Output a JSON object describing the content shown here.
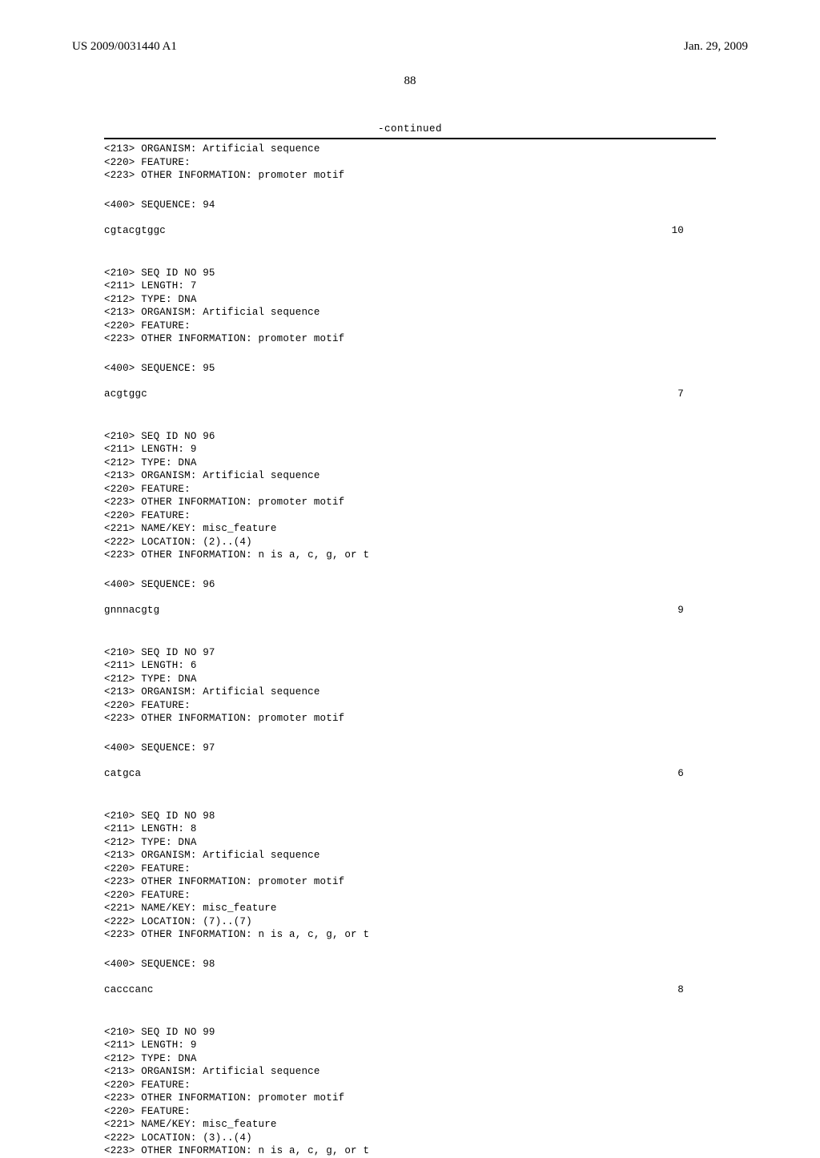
{
  "header": {
    "left": "US 2009/0031440 A1",
    "right": "Jan. 29, 2009"
  },
  "page_number": "88",
  "continued_label": "-continued",
  "entries": [
    {
      "meta": [
        "<213> ORGANISM: Artificial sequence",
        "<220> FEATURE:",
        "<223> OTHER INFORMATION: promoter motif"
      ],
      "seq_header": "<400> SEQUENCE: 94",
      "sequence": "cgtacgtggc",
      "length": "10"
    },
    {
      "meta": [
        "<210> SEQ ID NO 95",
        "<211> LENGTH: 7",
        "<212> TYPE: DNA",
        "<213> ORGANISM: Artificial sequence",
        "<220> FEATURE:",
        "<223> OTHER INFORMATION: promoter motif"
      ],
      "seq_header": "<400> SEQUENCE: 95",
      "sequence": "acgtggc",
      "length": "7"
    },
    {
      "meta": [
        "<210> SEQ ID NO 96",
        "<211> LENGTH: 9",
        "<212> TYPE: DNA",
        "<213> ORGANISM: Artificial sequence",
        "<220> FEATURE:",
        "<223> OTHER INFORMATION: promoter motif",
        "<220> FEATURE:",
        "<221> NAME/KEY: misc_feature",
        "<222> LOCATION: (2)..(4)",
        "<223> OTHER INFORMATION: n is a, c, g, or t"
      ],
      "seq_header": "<400> SEQUENCE: 96",
      "sequence": "gnnnacgtg",
      "length": "9"
    },
    {
      "meta": [
        "<210> SEQ ID NO 97",
        "<211> LENGTH: 6",
        "<212> TYPE: DNA",
        "<213> ORGANISM: Artificial sequence",
        "<220> FEATURE:",
        "<223> OTHER INFORMATION: promoter motif"
      ],
      "seq_header": "<400> SEQUENCE: 97",
      "sequence": "catgca",
      "length": "6"
    },
    {
      "meta": [
        "<210> SEQ ID NO 98",
        "<211> LENGTH: 8",
        "<212> TYPE: DNA",
        "<213> ORGANISM: Artificial sequence",
        "<220> FEATURE:",
        "<223> OTHER INFORMATION: promoter motif",
        "<220> FEATURE:",
        "<221> NAME/KEY: misc_feature",
        "<222> LOCATION: (7)..(7)",
        "<223> OTHER INFORMATION: n is a, c, g, or t"
      ],
      "seq_header": "<400> SEQUENCE: 98",
      "sequence": "cacccanc",
      "length": "8"
    },
    {
      "meta": [
        "<210> SEQ ID NO 99",
        "<211> LENGTH: 9",
        "<212> TYPE: DNA",
        "<213> ORGANISM: Artificial sequence",
        "<220> FEATURE:",
        "<223> OTHER INFORMATION: promoter motif",
        "<220> FEATURE:",
        "<221> NAME/KEY: misc_feature",
        "<222> LOCATION: (3)..(4)",
        "<223> OTHER INFORMATION: n is a, c, g, or t"
      ],
      "seq_header": null,
      "sequence": null,
      "length": null
    }
  ]
}
